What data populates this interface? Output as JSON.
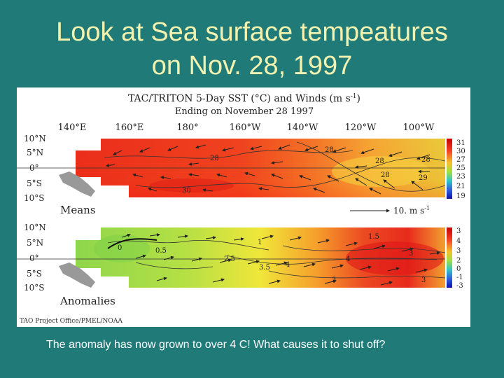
{
  "slide": {
    "title_line1": "Look at Sea surface tempeatures",
    "title_line2": "on Nov. 28, 1997",
    "caption": "The anomaly has now grown to over 4 C! What causes it to shut off?"
  },
  "figure": {
    "title_line1": "TAC/TRITON 5-Day SST (°C) and Winds (m s",
    "title_sup": "-1",
    "title_close": ")",
    "title_line2": "Ending on November 28 1997",
    "longitudes": [
      "140°E",
      "160°E",
      "180°",
      "160°W",
      "140°W",
      "120°W",
      "100°W"
    ],
    "latitudes": [
      "10°N",
      "5°N",
      "0°",
      "5°S",
      "10°S"
    ],
    "means_label": "Means",
    "anomalies_label": "Anomalies",
    "wind_scale_label": "10. m s",
    "wind_scale_sup": "-1",
    "credit": "TAO Project Office/PMEL/NOAA",
    "means_colorbar_ticks": [
      "31",
      "30",
      "27",
      "25",
      "23",
      "21",
      "19"
    ],
    "anomaly_colorbar_ticks": [
      "3",
      "4",
      "3",
      "2",
      "0",
      "-1",
      "-3"
    ],
    "means_contour_labels": [
      "28",
      "30",
      "28",
      "28",
      "28",
      "29",
      "28"
    ],
    "anomaly_contour_labels": [
      "0",
      "0.5",
      "1",
      "1.5",
      "2.5",
      "3.5",
      "4",
      "3",
      "3",
      "4",
      "3"
    ],
    "colors": {
      "slide_bg": "#1f7a78",
      "title_text": "#f2f2b0",
      "warm_red": "#e8321e",
      "orange": "#f26a22",
      "yellow": "#f0e63a",
      "green": "#8ed64c",
      "land": "#999999"
    }
  }
}
